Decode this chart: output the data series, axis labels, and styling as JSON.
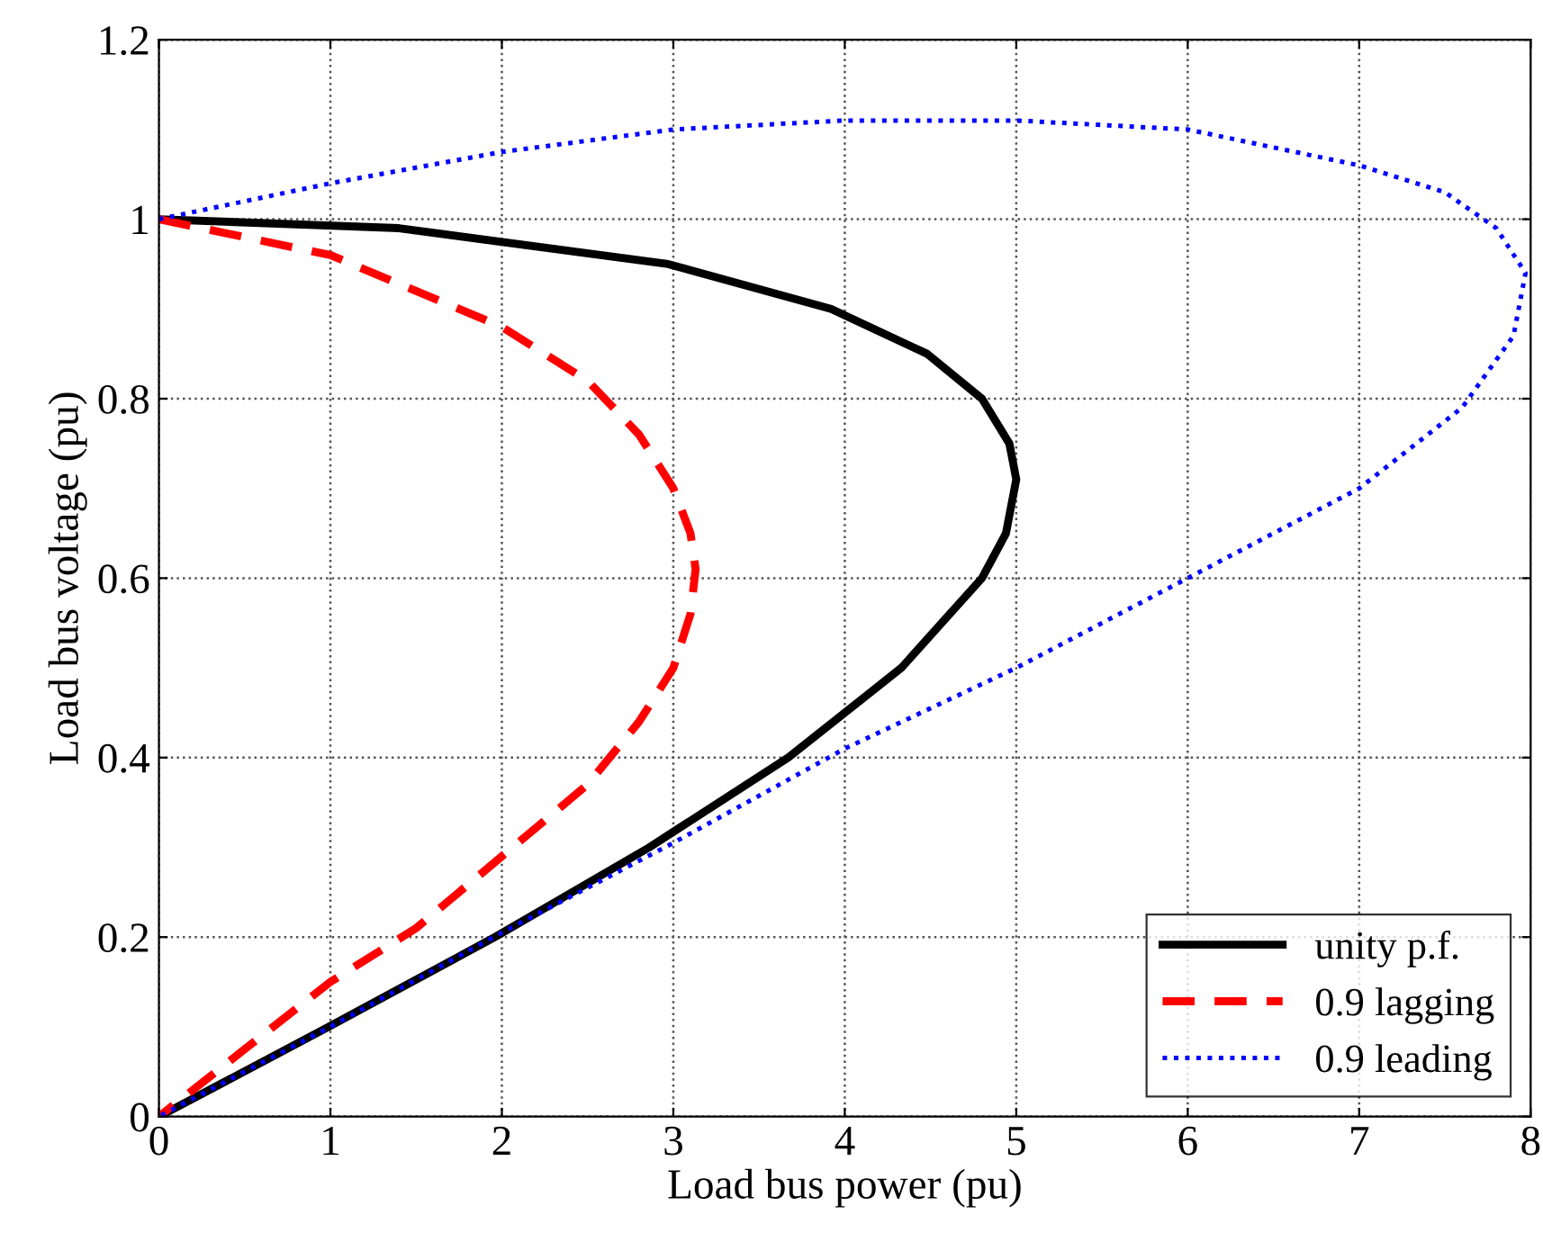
{
  "chart_data": {
    "type": "line",
    "xlabel": "Load bus power (pu)",
    "ylabel": "Load bus voltage (pu)",
    "xlim": [
      0,
      8
    ],
    "xticks": [
      0,
      1,
      2,
      3,
      4,
      5,
      6,
      7,
      8
    ],
    "ylim": [
      0,
      1.2
    ],
    "yticks": [
      0,
      0.2,
      0.4,
      0.6,
      0.8,
      1,
      1.2
    ],
    "grid": true,
    "legend": "bottom right",
    "marker": "none",
    "series": [
      {
        "name": "unity p.f.",
        "color": "#000000",
        "line_style": "solid",
        "x": [
          0,
          1.4,
          2.97,
          3.92,
          4.48,
          4.8,
          4.96,
          5.0,
          4.94,
          4.8,
          4.33,
          3.67,
          2.86,
          1.96,
          0.99,
          0
        ],
        "values": [
          1,
          0.99,
          0.95,
          0.9,
          0.85,
          0.8,
          0.75,
          0.71,
          0.65,
          0.6,
          0.5,
          0.4,
          0.3,
          0.2,
          0.1,
          0
        ]
      },
      {
        "name": "0.9 lagging",
        "color": "#ff0000",
        "line_style": "dashed",
        "x": [
          0,
          1,
          2,
          2.5,
          2.8,
          3.0,
          3.1,
          3.13,
          3.1,
          3.0,
          2.8,
          2.5,
          2.0,
          1.5,
          1.0,
          0.5,
          0
        ],
        "values": [
          1,
          0.96,
          0.88,
          0.82,
          0.76,
          0.7,
          0.65,
          0.61,
          0.56,
          0.5,
          0.44,
          0.37,
          0.29,
          0.21,
          0.15,
          0.075,
          0
        ]
      },
      {
        "name": "0.9 leading",
        "color": "#0000ff",
        "line_style": "dotted",
        "x": [
          0,
          1,
          2,
          3,
          4,
          5,
          6,
          7,
          7.5,
          7.8,
          7.97,
          7.9,
          7.6,
          7,
          6,
          5,
          4,
          3,
          2,
          1,
          0
        ],
        "values": [
          1,
          1.04,
          1.075,
          1.1,
          1.11,
          1.11,
          1.1,
          1.06,
          1.03,
          0.99,
          0.94,
          0.87,
          0.79,
          0.7,
          0.6,
          0.5,
          0.41,
          0.305,
          0.205,
          0.1,
          0
        ]
      }
    ]
  }
}
